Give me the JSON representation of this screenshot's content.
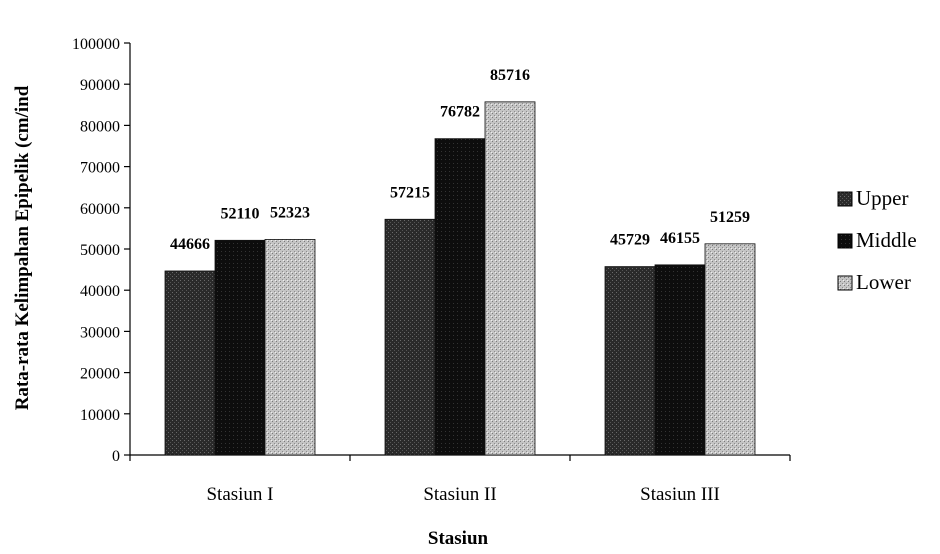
{
  "chart_data": {
    "type": "bar",
    "title": "",
    "xlabel": "Stasiun",
    "ylabel": "Rata-rata Kelimpahan Epipelik (cm/ind",
    "categories": [
      "Stasiun I",
      "Stasiun II",
      "Stasiun III"
    ],
    "series": [
      {
        "name": "Upper",
        "values": [
          44666,
          57215,
          45729
        ],
        "color": "#2a2a2a"
      },
      {
        "name": "Middle",
        "values": [
          52110,
          76782,
          46155
        ],
        "color": "#0d0d0d"
      },
      {
        "name": "Lower",
        "values": [
          52323,
          85716,
          51259
        ],
        "color": "#b8b8b8"
      }
    ],
    "ylim": [
      0,
      100000
    ],
    "yticks": [
      "0",
      "10000",
      "20000",
      "30000",
      "40000",
      "50000",
      "60000",
      "70000",
      "80000",
      "90000",
      "100000"
    ],
    "data_labels": [
      [
        "44666",
        "57215",
        "45729"
      ],
      [
        "52110",
        "76782",
        "46155"
      ],
      [
        "52323",
        "85716",
        "51259"
      ]
    ],
    "grid": false,
    "legend_position": "right"
  }
}
